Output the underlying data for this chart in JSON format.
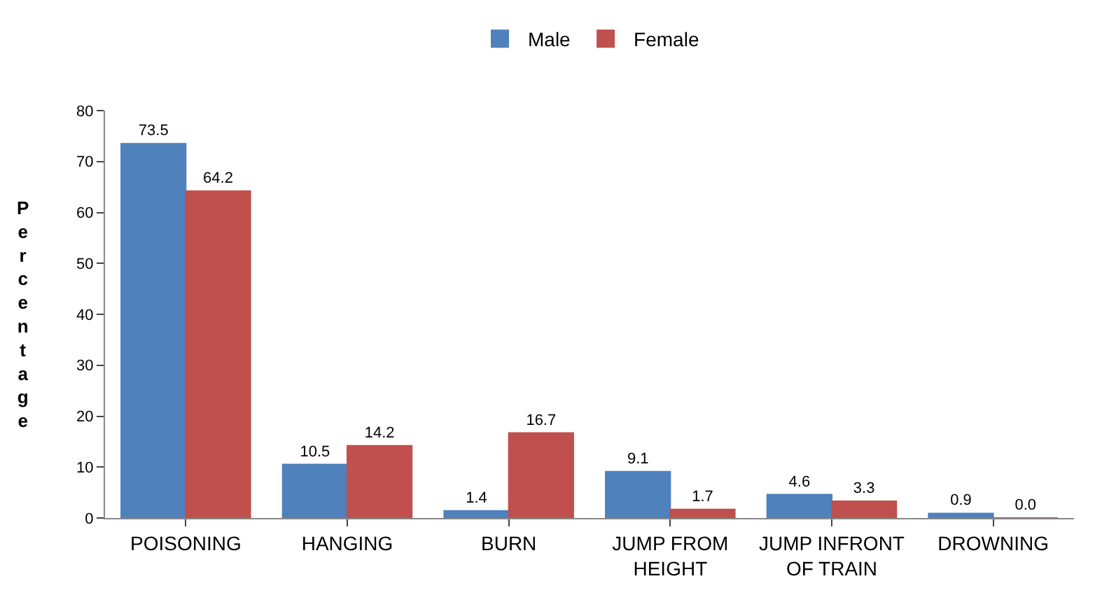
{
  "chart_data": {
    "type": "bar",
    "ylabel": "Percentage",
    "categories": [
      "POISONING",
      "HANGING",
      "BURN",
      "JUMP FROM HEIGHT",
      "JUMP INFRONT OF TRAIN",
      "DROWNING"
    ],
    "series": [
      {
        "name": "Male",
        "color": "#4f81bd",
        "values": [
          73.5,
          10.5,
          1.4,
          9.1,
          4.6,
          0.9
        ],
        "value_labels": [
          "73.5",
          "10.5",
          "1.4",
          "9.1",
          "4.6",
          "0.9"
        ]
      },
      {
        "name": "Female",
        "color": "#c0504d",
        "values": [
          64.2,
          14.2,
          16.7,
          1.7,
          3.3,
          0.0
        ],
        "value_labels": [
          "64.2",
          "14.2",
          "16.7",
          "1.7",
          "3.3",
          "0.0"
        ]
      }
    ],
    "ylim": [
      0,
      80
    ],
    "yticks": [
      0,
      10,
      20,
      30,
      40,
      50,
      60,
      70,
      80
    ],
    "grid": false,
    "legend": "top"
  }
}
